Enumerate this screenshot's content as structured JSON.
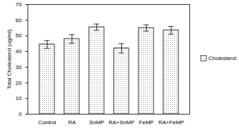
{
  "chart_data": {
    "type": "bar",
    "y_label": "Total Cholesterol (ug/ml)",
    "categories": [
      "Control",
      "RA",
      "SnMP",
      "RA+SnMP",
      "FeMP",
      "RA+FeMP"
    ],
    "series": [
      {
        "name": "Cholesterol",
        "color": "#808080",
        "values": [
          44.5,
          48,
          55.5,
          42,
          55,
          53.5
        ],
        "errors": [
          2.5,
          2.8,
          2,
          3,
          2,
          2.5
        ]
      }
    ],
    "ylim": [
      0,
      70
    ],
    "yticks": [
      0,
      10,
      20,
      30,
      40,
      50,
      60,
      70
    ],
    "legend": "right"
  }
}
